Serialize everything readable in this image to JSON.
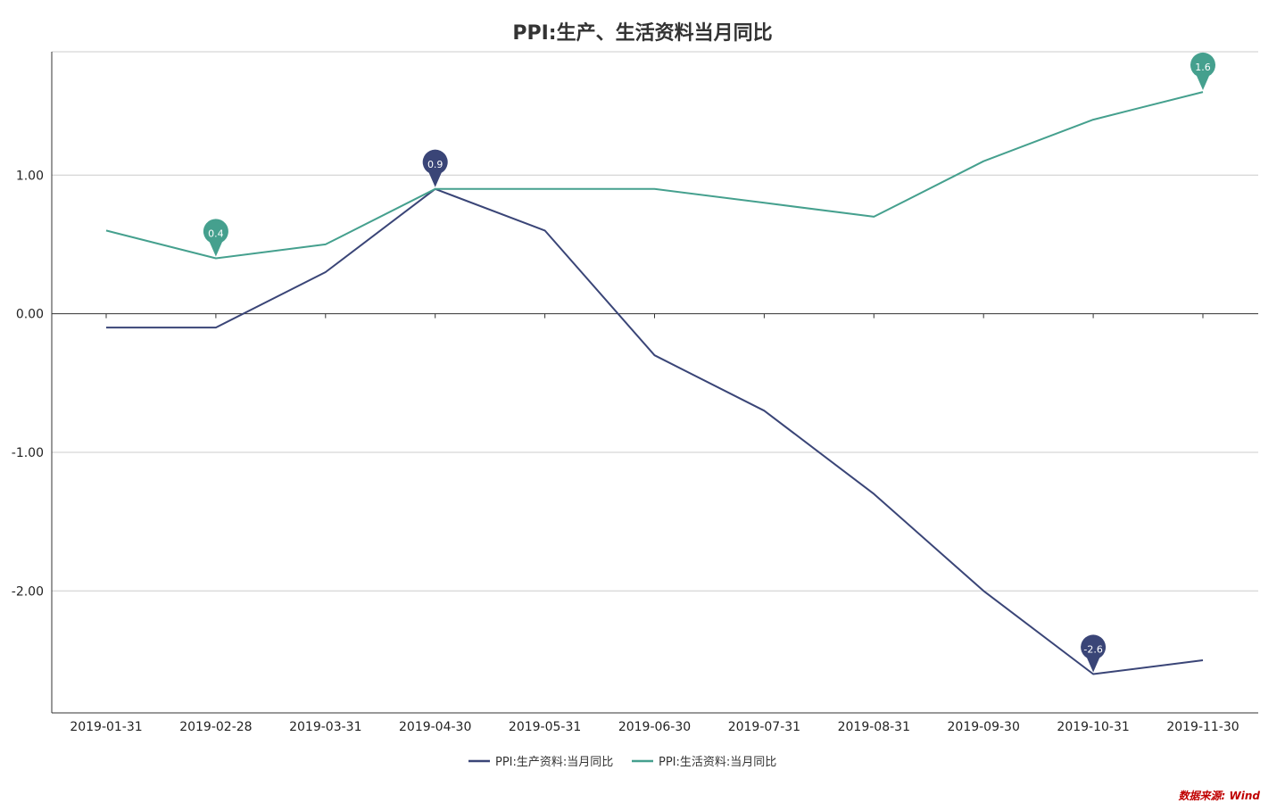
{
  "chart_data": {
    "type": "line",
    "title": "PPI:生产、生活资料当月同比",
    "xlabel": "",
    "ylabel": "",
    "categories": [
      "2019-01-31",
      "2019-02-28",
      "2019-03-31",
      "2019-04-30",
      "2019-05-31",
      "2019-06-30",
      "2019-07-31",
      "2019-08-31",
      "2019-09-30",
      "2019-10-31",
      "2019-11-30"
    ],
    "ylim": [
      -2.88,
      1.89
    ],
    "yticks": [
      -2.0,
      -1.0,
      0.0,
      1.0
    ],
    "ytick_labels": [
      "-2.00",
      "-1.00",
      "0.00",
      "1.00"
    ],
    "grid": true,
    "legend": "bottom-center",
    "series": [
      {
        "name": "PPI:生产资料:当月同比",
        "color": "#3a4577",
        "values": [
          -0.1,
          -0.1,
          0.3,
          0.9,
          0.6,
          -0.3,
          -0.7,
          -1.3,
          -2.0,
          -2.6,
          -2.5
        ],
        "markers": [
          {
            "index": 3,
            "label": "0.9"
          },
          {
            "index": 9,
            "label": "-2.6"
          }
        ]
      },
      {
        "name": "PPI:生活资料:当月同比",
        "color": "#45a08e",
        "values": [
          0.6,
          0.4,
          0.5,
          0.9,
          0.9,
          0.9,
          0.8,
          0.7,
          1.1,
          1.4,
          1.6
        ],
        "markers": [
          {
            "index": 1,
            "label": "0.4"
          },
          {
            "index": 10,
            "label": "1.6"
          }
        ]
      }
    ]
  },
  "source_note": "数据来源: Wind"
}
